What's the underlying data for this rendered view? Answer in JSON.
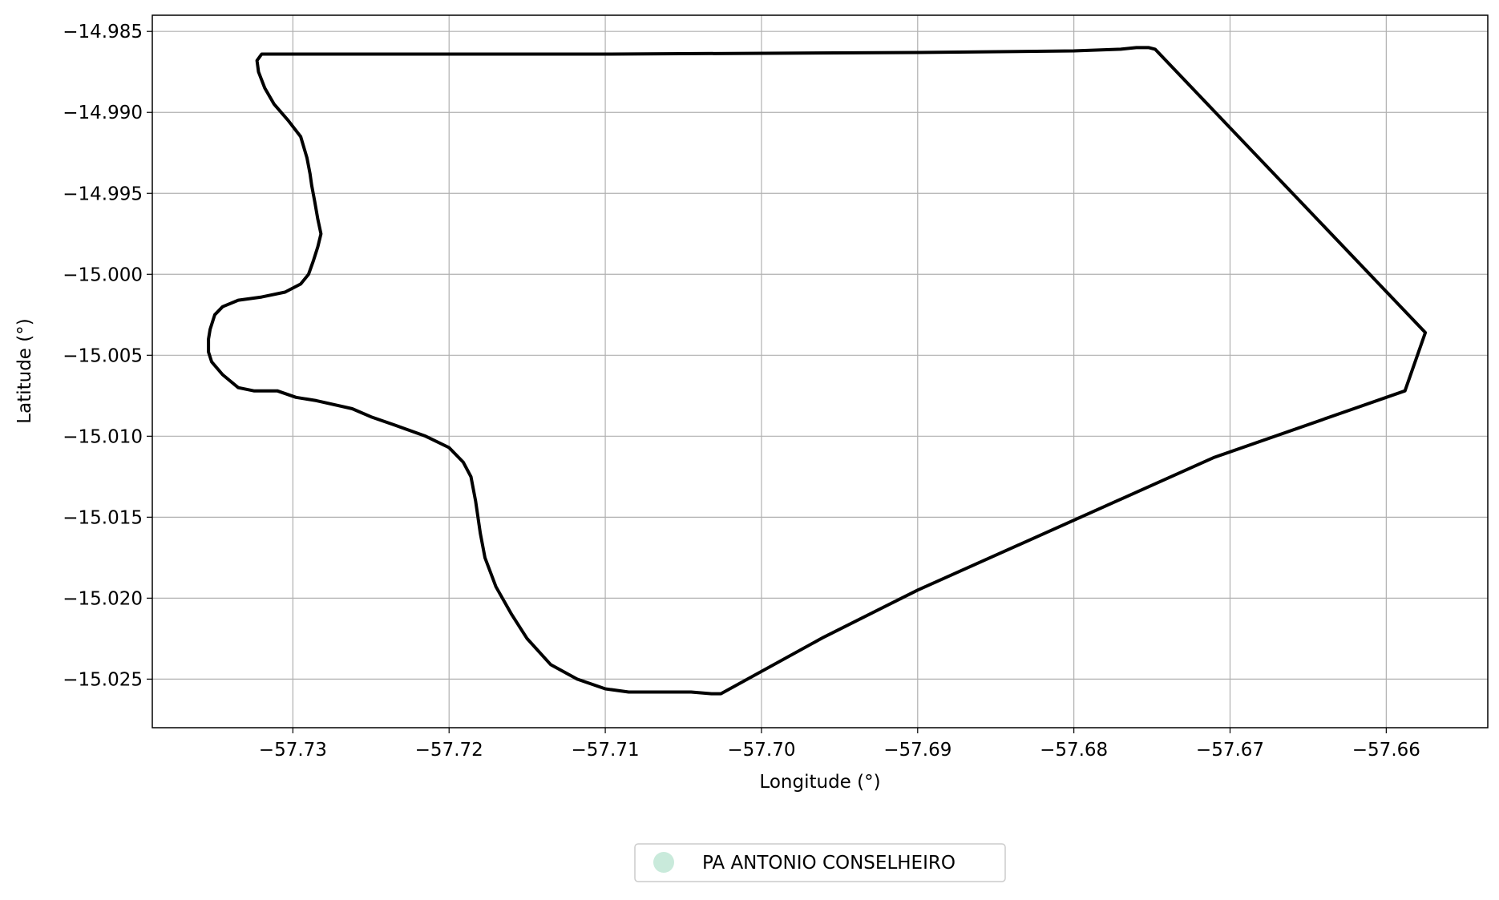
{
  "chart_data": {
    "type": "map",
    "title": "",
    "xlabel": "Longitude (°)",
    "ylabel": "Latitude (°)",
    "xlim": [
      -57.739,
      -57.6535
    ],
    "ylim": [
      -15.028,
      -14.984
    ],
    "grid": true,
    "legend_position": "bottom-center",
    "x_ticks": [
      {
        "value": -57.73,
        "label": "−57.73"
      },
      {
        "value": -57.72,
        "label": "−57.72"
      },
      {
        "value": -57.71,
        "label": "−57.71"
      },
      {
        "value": -57.7,
        "label": "−57.70"
      },
      {
        "value": -57.69,
        "label": "−57.69"
      },
      {
        "value": -57.68,
        "label": "−57.68"
      },
      {
        "value": -57.67,
        "label": "−57.67"
      },
      {
        "value": -57.66,
        "label": "−57.66"
      }
    ],
    "y_ticks": [
      {
        "value": -14.985,
        "label": "−14.985"
      },
      {
        "value": -14.99,
        "label": "−14.990"
      },
      {
        "value": -14.995,
        "label": "−14.995"
      },
      {
        "value": -15.0,
        "label": "−15.000"
      },
      {
        "value": -15.005,
        "label": "−15.005"
      },
      {
        "value": -15.01,
        "label": "−15.010"
      },
      {
        "value": -15.015,
        "label": "−15.015"
      },
      {
        "value": -15.02,
        "label": "−15.020"
      },
      {
        "value": -15.025,
        "label": "−15.025"
      }
    ],
    "series": [
      {
        "name": "PA ANTONIO CONSELHEIRO",
        "legend_color": "#c9eadb",
        "outline_color": "#000000",
        "points": [
          [
            -57.732,
            -14.9864
          ],
          [
            -57.71,
            -14.9864
          ],
          [
            -57.69,
            -14.9863
          ],
          [
            -57.68,
            -14.9862
          ],
          [
            -57.677,
            -14.9861
          ],
          [
            -57.676,
            -14.986
          ],
          [
            -57.6752,
            -14.986
          ],
          [
            -57.6748,
            -14.9861
          ],
          [
            -57.6575,
            -15.0036
          ],
          [
            -57.6588,
            -15.0072
          ],
          [
            -57.671,
            -15.0113
          ],
          [
            -57.69,
            -15.0195
          ],
          [
            -57.696,
            -15.0224
          ],
          [
            -57.7026,
            -15.0259
          ],
          [
            -57.7032,
            -15.0259
          ],
          [
            -57.7045,
            -15.0258
          ],
          [
            -57.7085,
            -15.0258
          ],
          [
            -57.71,
            -15.0256
          ],
          [
            -57.7118,
            -15.025
          ],
          [
            -57.7135,
            -15.0241
          ],
          [
            -57.715,
            -15.0225
          ],
          [
            -57.716,
            -15.021
          ],
          [
            -57.717,
            -15.0193
          ],
          [
            -57.7177,
            -15.0175
          ],
          [
            -57.718,
            -15.016
          ],
          [
            -57.7183,
            -15.014
          ],
          [
            -57.7186,
            -15.0125
          ],
          [
            -57.7191,
            -15.0116
          ],
          [
            -57.72,
            -15.0107
          ],
          [
            -57.7215,
            -15.01
          ],
          [
            -57.7235,
            -15.0093
          ],
          [
            -57.725,
            -15.0088
          ],
          [
            -57.7262,
            -15.0083
          ],
          [
            -57.7285,
            -15.0078
          ],
          [
            -57.7298,
            -15.0076
          ],
          [
            -57.731,
            -15.0072
          ],
          [
            -57.7318,
            -15.0072
          ],
          [
            -57.7325,
            -15.0072
          ],
          [
            -57.7335,
            -15.007
          ],
          [
            -57.7345,
            -15.0062
          ],
          [
            -57.7352,
            -15.0054
          ],
          [
            -57.7354,
            -15.0048
          ],
          [
            -57.7354,
            -15.004
          ],
          [
            -57.7353,
            -15.0034
          ],
          [
            -57.735,
            -15.0025
          ],
          [
            -57.7345,
            -15.002
          ],
          [
            -57.7335,
            -15.0016
          ],
          [
            -57.732,
            -15.0014
          ],
          [
            -57.7305,
            -15.0011
          ],
          [
            -57.7295,
            -15.0006
          ],
          [
            -57.729,
            -15.0
          ],
          [
            -57.7287,
            -14.9992
          ],
          [
            -57.7284,
            -14.9983
          ],
          [
            -57.7282,
            -14.9975
          ],
          [
            -57.7284,
            -14.9966
          ],
          [
            -57.7286,
            -14.9955
          ],
          [
            -57.7288,
            -14.9945
          ],
          [
            -57.7289,
            -14.9938
          ],
          [
            -57.7291,
            -14.9928
          ],
          [
            -57.7295,
            -14.9915
          ],
          [
            -57.7303,
            -14.9905
          ],
          [
            -57.7312,
            -14.9895
          ],
          [
            -57.7318,
            -14.9885
          ],
          [
            -57.7322,
            -14.9875
          ],
          [
            -57.7323,
            -14.9868
          ],
          [
            -57.732,
            -14.9864
          ]
        ]
      }
    ]
  }
}
